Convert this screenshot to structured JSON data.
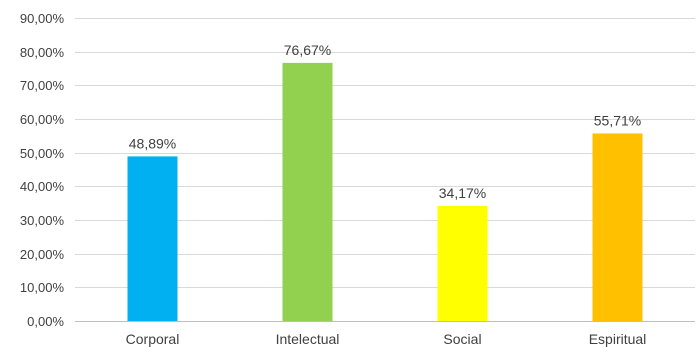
{
  "chart_data": {
    "type": "bar",
    "categories": [
      "Corporal",
      "Intelectual",
      "Social",
      "Espiritual"
    ],
    "values": [
      48.89,
      76.67,
      34.17,
      55.71
    ],
    "data_labels": [
      "48,89%",
      "76,67%",
      "34,17%",
      "55,71%"
    ],
    "colors": [
      "#00b0f0",
      "#92d050",
      "#ffff00",
      "#ffc000"
    ],
    "ylim": [
      0,
      90
    ],
    "yticks": [
      0,
      10,
      20,
      30,
      40,
      50,
      60,
      70,
      80,
      90
    ],
    "ytick_labels": [
      "0,00%",
      "10,00%",
      "20,00%",
      "30,00%",
      "40,00%",
      "50,00%",
      "60,00%",
      "70,00%",
      "80,00%",
      "90,00%"
    ],
    "grid": true,
    "legend": "none"
  }
}
